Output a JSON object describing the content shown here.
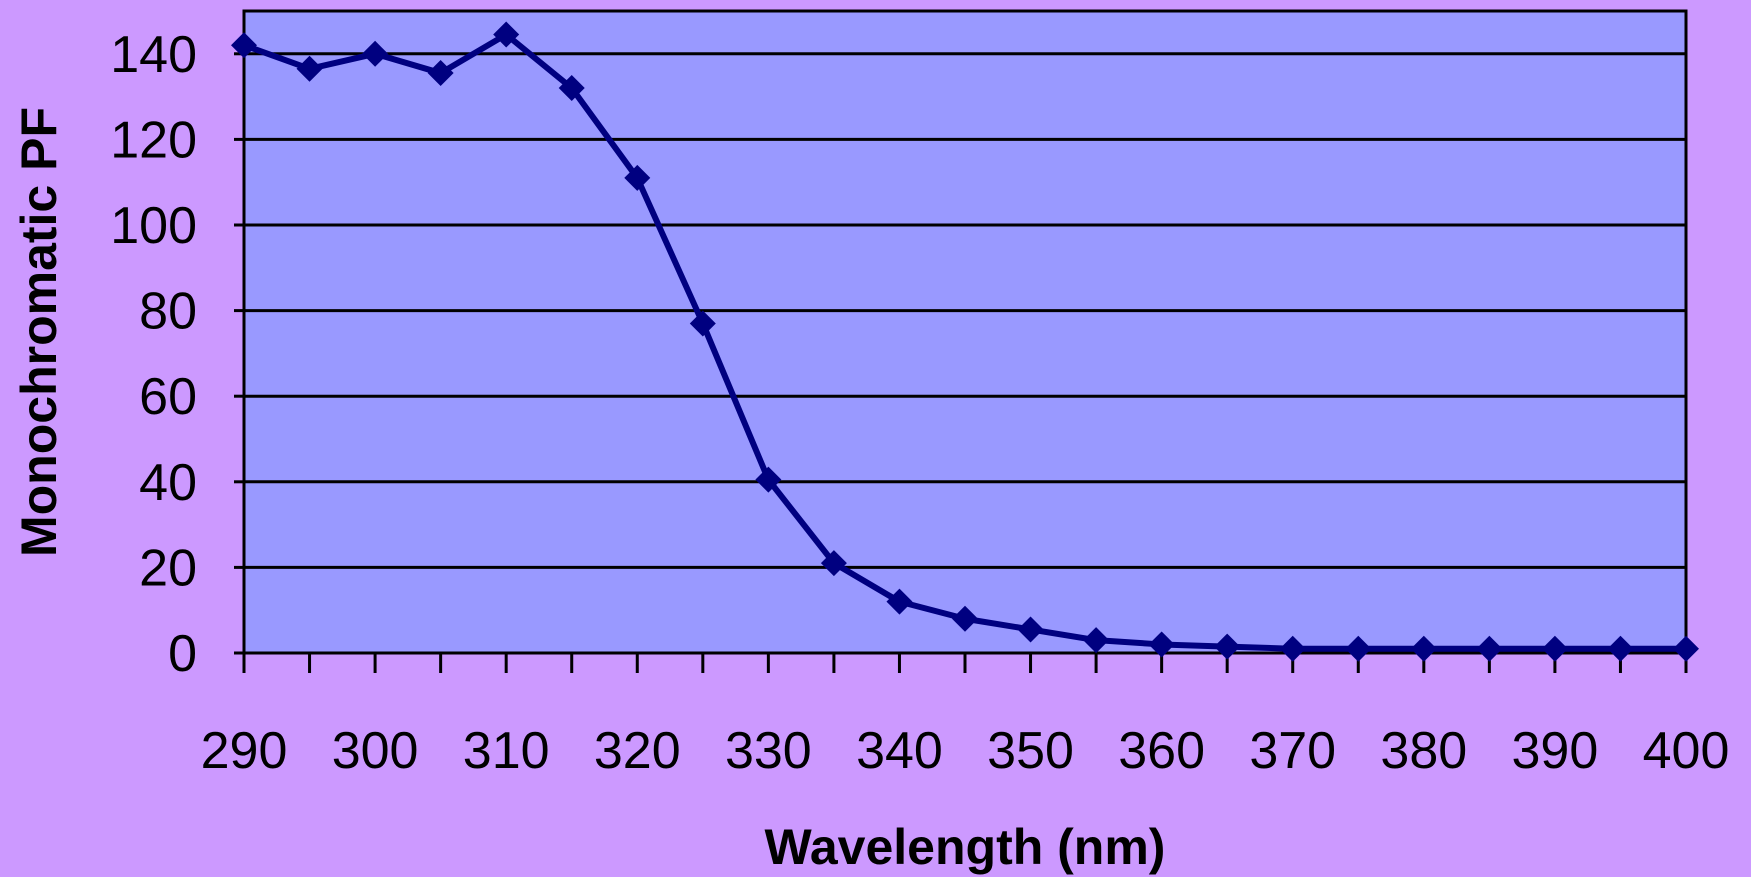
{
  "chart_data": {
    "type": "line",
    "title": "",
    "xlabel": "Wavelength (nm)",
    "ylabel": "Monochromatic PF",
    "xlim": [
      290,
      400
    ],
    "ylim": [
      0,
      150
    ],
    "x_ticks": [
      290,
      300,
      310,
      320,
      330,
      340,
      350,
      360,
      370,
      380,
      390,
      400
    ],
    "y_ticks": [
      0,
      20,
      40,
      60,
      80,
      100,
      120,
      140
    ],
    "grid": true,
    "legend": "none",
    "series": [
      {
        "x": [
          290,
          295,
          300,
          305,
          310,
          315,
          320,
          325,
          330,
          335,
          340,
          345,
          350,
          355,
          360,
          365,
          370,
          375,
          380,
          385,
          390,
          395,
          400
        ],
        "y": [
          142,
          136.5,
          140,
          135.5,
          144.5,
          132,
          111,
          77,
          40.5,
          21,
          12,
          8,
          5.5,
          3,
          2,
          1.5,
          1,
          1,
          1,
          1,
          1,
          1,
          1
        ]
      }
    ],
    "colors": {
      "background": "#cc99ff",
      "plot_area": "#9999ff",
      "line": "#000080",
      "grid": "#000000"
    }
  }
}
